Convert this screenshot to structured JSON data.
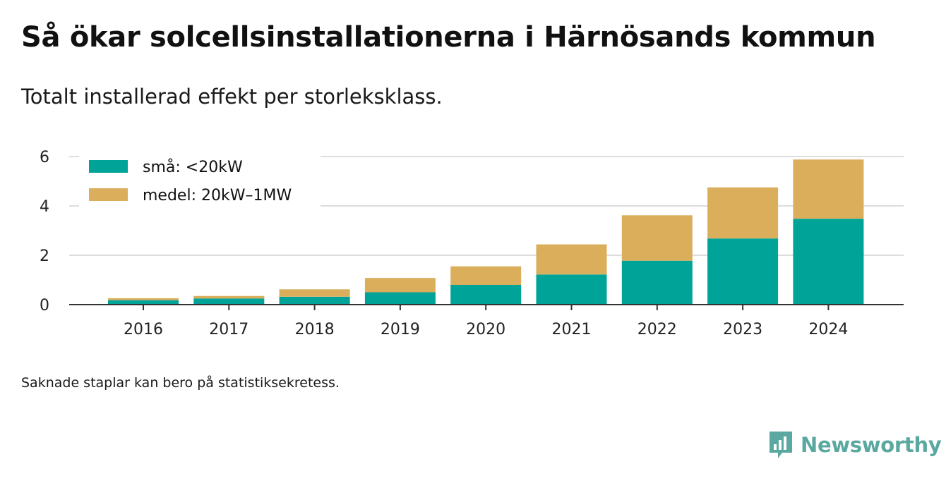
{
  "header": {
    "title": "Så ökar solcellsinstallationerna i Härnösands kommun",
    "subtitle": "Totalt installerad effekt per storleksklass."
  },
  "footer": {
    "note": "Saknade staplar kan bero på statistiksekretess.",
    "brand": "Newsworthy"
  },
  "colors": {
    "small": "#00a398",
    "medium": "#dbae5c",
    "grid": "#dddddd",
    "axis": "#333333",
    "brand": "#5aa8a0"
  },
  "icons": {
    "brand": "bar-chart-speech-bubble-icon"
  },
  "chart_data": {
    "type": "bar",
    "stacked": true,
    "title": "Så ökar solcellsinstallationerna i Härnösands kommun",
    "subtitle": "Totalt installerad effekt per storleksklass.",
    "xlabel": "",
    "ylabel": "",
    "categories": [
      "2016",
      "2017",
      "2018",
      "2019",
      "2020",
      "2021",
      "2022",
      "2023",
      "2024"
    ],
    "series": [
      {
        "name": "små: <20kW",
        "values": [
          0.18,
          0.25,
          0.32,
          0.5,
          0.8,
          1.22,
          1.78,
          2.68,
          3.48
        ]
      },
      {
        "name": "medel: 20kW–1MW",
        "values": [
          0.08,
          0.1,
          0.3,
          0.58,
          0.75,
          1.22,
          1.84,
          2.07,
          2.4
        ]
      }
    ],
    "ylim": [
      0,
      6
    ],
    "yticks": [
      0,
      2,
      4,
      6
    ],
    "grid": true,
    "legend": "top-left"
  }
}
